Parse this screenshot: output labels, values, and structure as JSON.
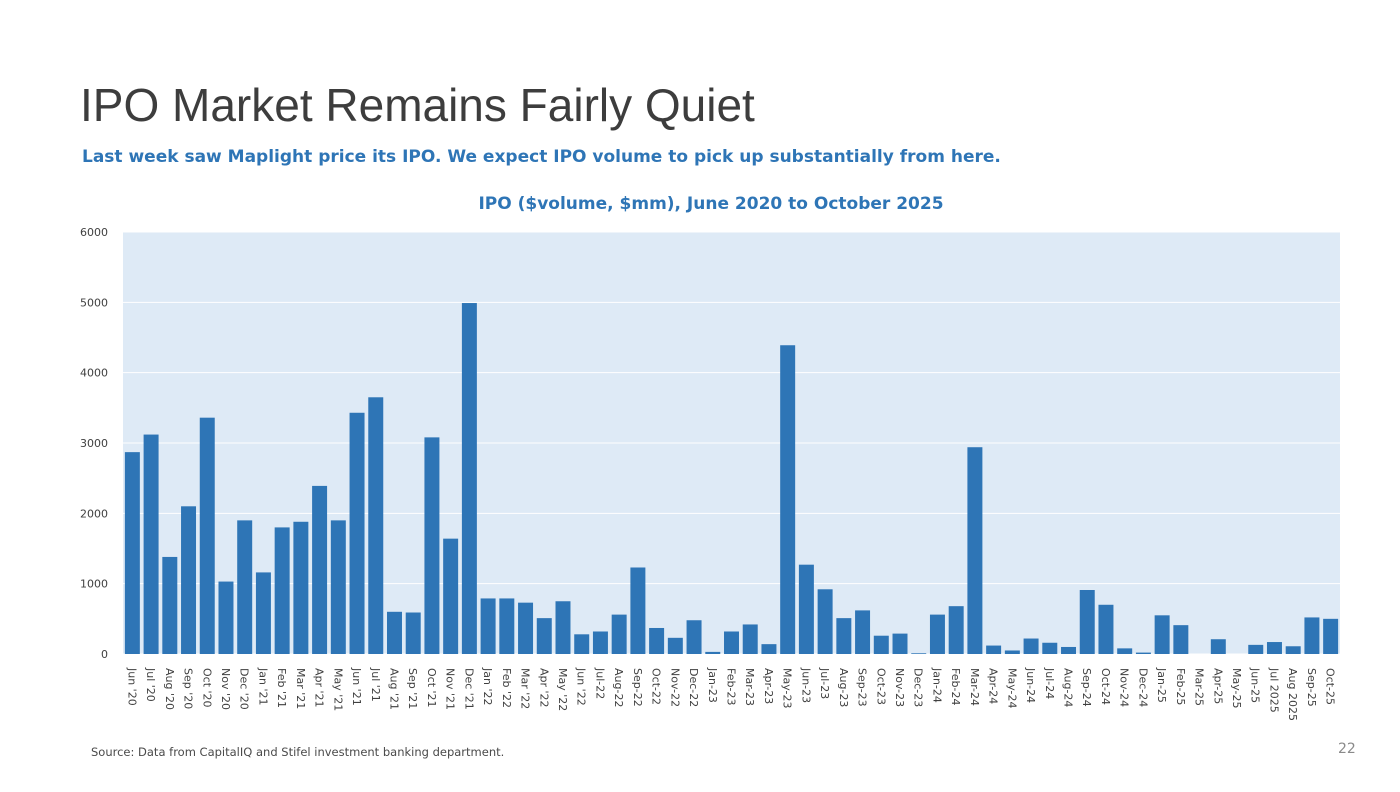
{
  "slide": {
    "title": "IPO Market Remains Fairly Quiet",
    "subtitle": "Last week saw Maplight price its IPO. We expect IPO volume to pick up substantially from here.",
    "source": "Source: Data from CapitalIQ and Stifel investment banking department.",
    "page_number": "22"
  },
  "colors": {
    "bar": "#2e75b6",
    "plot_background": "#deeaf6",
    "accent_text": "#2e75b6",
    "gridline": "#ffffff"
  },
  "chart_data": {
    "type": "bar",
    "title": "IPO ($volume, $mm), June 2020 to October 2025",
    "xlabel": "",
    "ylabel": "",
    "ylim": [
      0,
      6000
    ],
    "yticks": [
      0,
      1000,
      2000,
      3000,
      4000,
      5000,
      6000
    ],
    "grid": true,
    "legend": "none",
    "categories": [
      "Jun '20",
      "Jul '20",
      "Aug '20",
      "Sep '20",
      "Oct '20",
      "Nov '20",
      "Dec '20",
      "Jan '21",
      "Feb '21",
      "Mar '21",
      "Apr '21",
      "May '21",
      "Jun '21",
      "Jul '21",
      "Aug '21",
      "Sep '21",
      "Oct '21",
      "Nov '21",
      "Dec '21",
      "Jan '22",
      "Feb '22",
      "Mar '22",
      "Apr '22",
      "May '22",
      "Jun '22",
      "Jul-22",
      "Aug-22",
      "Sep-22",
      "Oct-22",
      "Nov-22",
      "Dec-22",
      "Jan-23",
      "Feb-23",
      "Mar-23",
      "Apr-23",
      "May-23",
      "Jun-23",
      "Jul-23",
      "Aug-23",
      "Sep-23",
      "Oct-23",
      "Nov-23",
      "Dec-23",
      "Jan-24",
      "Feb-24",
      "Mar-24",
      "Apr-24",
      "May-24",
      "Jun-24",
      "Jul-24",
      "Aug-24",
      "Sep-24",
      "Oct-24",
      "Nov-24",
      "Dec-24",
      "Jan-25",
      "Feb-25",
      "Mar-25",
      "Apr-25",
      "May-25",
      "Jun-25",
      "Jul 2025",
      "Aug 2025",
      "Sep-25",
      "Oct-25"
    ],
    "values": [
      2870,
      3120,
      1380,
      2100,
      3360,
      1030,
      1900,
      1160,
      1800,
      1880,
      2390,
      1900,
      3430,
      3650,
      600,
      590,
      3080,
      1640,
      4990,
      790,
      790,
      730,
      510,
      750,
      280,
      320,
      560,
      1230,
      370,
      230,
      480,
      30,
      320,
      420,
      140,
      4390,
      1270,
      920,
      510,
      620,
      260,
      290,
      10,
      560,
      680,
      2940,
      120,
      50,
      220,
      160,
      100,
      910,
      700,
      80,
      20,
      550,
      410,
      0,
      210,
      0,
      130,
      170,
      110,
      520,
      500
    ]
  }
}
